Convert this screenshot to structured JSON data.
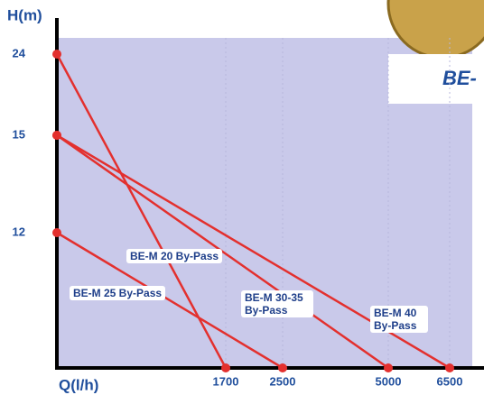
{
  "chart_data": {
    "type": "line",
    "y_label": "H(m)",
    "x_label": "Q(l/h)",
    "brand": "BE-",
    "xlim": [
      0,
      6500
    ],
    "ylim": [
      0,
      24
    ],
    "xticks": [
      1700,
      2500,
      5000,
      6500
    ],
    "yticks": [
      12,
      15,
      24
    ],
    "series": [
      {
        "name": "BE-M 20 By-Pass",
        "color": "#e3302e",
        "x": [
          0,
          1700
        ],
        "values": [
          24,
          0
        ]
      },
      {
        "name": "BE-M 25 By-Pass",
        "color": "#e3302e",
        "x": [
          0,
          2500
        ],
        "values": [
          12,
          0
        ]
      },
      {
        "name": "BE-M 30-35 By-Pass",
        "color": "#e3302e",
        "x": [
          0,
          5000
        ],
        "values": [
          15,
          0
        ]
      },
      {
        "name": "BE-M 40 By-Pass",
        "color": "#e3302e",
        "x": [
          0,
          6500
        ],
        "values": [
          15,
          0
        ]
      }
    ]
  }
}
